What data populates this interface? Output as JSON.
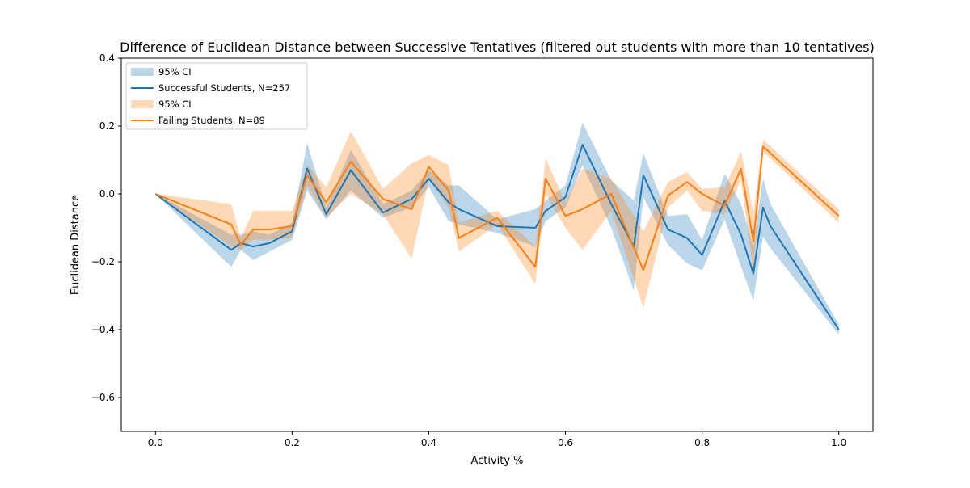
{
  "chart_data": {
    "type": "line",
    "title": "Difference of Euclidean Distance between Successive Tentatives (filtered out students with more than 10 tentatives)",
    "xlabel": "Activity %",
    "ylabel": "Euclidean Distance",
    "xlim": [
      -0.05,
      1.05
    ],
    "ylim": [
      -0.7,
      0.4
    ],
    "xticks": [
      0.0,
      0.2,
      0.4,
      0.6,
      0.8,
      1.0
    ],
    "xtick_labels": [
      "0.0",
      "0.2",
      "0.4",
      "0.6",
      "0.8",
      "1.0"
    ],
    "yticks": [
      -0.6,
      -0.4,
      -0.2,
      0.0,
      0.2,
      0.4
    ],
    "ytick_labels": [
      "−0.6",
      "−0.4",
      "−0.2",
      "0.0",
      "0.2",
      "0.4"
    ],
    "grid": false,
    "legend_position": "top-left",
    "legend": [
      "95% CI",
      "Successful Students, N=257",
      "95% CI",
      "Failing Students, N=89"
    ],
    "series": [
      {
        "name": "Successful Students, N=257",
        "color": "#1f77b4",
        "band_color": "#1f77b4",
        "x": [
          0.0,
          0.111,
          0.125,
          0.143,
          0.167,
          0.2,
          0.222,
          0.25,
          0.286,
          0.333,
          0.375,
          0.4,
          0.429,
          0.444,
          0.5,
          0.556,
          0.571,
          0.6,
          0.625,
          0.667,
          0.7,
          0.714,
          0.75,
          0.778,
          0.8,
          0.833,
          0.857,
          0.875,
          0.889,
          0.9,
          1.0
        ],
        "y": [
          0.0,
          -0.165,
          -0.145,
          -0.155,
          -0.145,
          -0.11,
          0.075,
          -0.06,
          0.07,
          -0.055,
          -0.015,
          0.045,
          -0.025,
          -0.045,
          -0.095,
          -0.1,
          -0.05,
          -0.01,
          0.145,
          -0.03,
          -0.155,
          0.055,
          -0.105,
          -0.13,
          -0.18,
          -0.02,
          -0.12,
          -0.235,
          -0.04,
          -0.095,
          -0.4
        ],
        "lower": [
          0.0,
          -0.215,
          -0.165,
          -0.195,
          -0.17,
          -0.135,
          0.01,
          -0.075,
          0.01,
          -0.07,
          -0.04,
          0.02,
          -0.08,
          -0.09,
          -0.115,
          -0.155,
          -0.08,
          -0.04,
          0.085,
          -0.1,
          -0.285,
          -0.01,
          -0.15,
          -0.205,
          -0.225,
          -0.075,
          -0.215,
          -0.315,
          -0.125,
          -0.16,
          -0.415
        ],
        "upper": [
          0.0,
          -0.12,
          -0.12,
          -0.11,
          -0.12,
          -0.085,
          0.15,
          -0.04,
          0.13,
          -0.03,
          0.01,
          0.07,
          0.025,
          0.025,
          -0.075,
          -0.045,
          -0.02,
          0.025,
          0.21,
          0.04,
          -0.02,
          0.12,
          -0.065,
          -0.06,
          -0.135,
          0.06,
          -0.03,
          -0.155,
          0.045,
          -0.03,
          -0.385
        ]
      },
      {
        "name": "Failing Students, N=89",
        "color": "#ff7f0e",
        "band_color": "#ff7f0e",
        "x": [
          0.0,
          0.111,
          0.125,
          0.143,
          0.167,
          0.2,
          0.222,
          0.25,
          0.286,
          0.333,
          0.375,
          0.4,
          0.429,
          0.444,
          0.5,
          0.556,
          0.571,
          0.6,
          0.625,
          0.667,
          0.714,
          0.75,
          0.778,
          0.8,
          0.833,
          0.857,
          0.875,
          0.889,
          1.0
        ],
        "y": [
          0.0,
          -0.09,
          -0.15,
          -0.105,
          -0.105,
          -0.095,
          0.055,
          -0.025,
          0.095,
          -0.015,
          -0.045,
          0.08,
          0.01,
          -0.13,
          -0.07,
          -0.215,
          0.045,
          -0.065,
          -0.045,
          0.0,
          -0.225,
          -0.005,
          0.035,
          0.0,
          -0.035,
          0.075,
          -0.14,
          0.14,
          -0.065
        ],
        "lower": [
          0.0,
          -0.155,
          -0.165,
          -0.135,
          -0.135,
          -0.13,
          0.025,
          -0.07,
          0.0,
          -0.06,
          -0.19,
          0.045,
          -0.04,
          -0.17,
          -0.09,
          -0.265,
          0.0,
          -0.1,
          -0.165,
          -0.05,
          -0.335,
          -0.04,
          0.01,
          -0.05,
          -0.06,
          0.04,
          -0.23,
          0.125,
          -0.085
        ],
        "upper": [
          0.0,
          -0.03,
          -0.13,
          -0.05,
          -0.05,
          -0.05,
          0.085,
          0.02,
          0.185,
          0.015,
          0.09,
          0.115,
          0.085,
          -0.085,
          -0.05,
          -0.155,
          0.105,
          -0.025,
          0.075,
          0.045,
          -0.11,
          0.035,
          0.065,
          0.015,
          0.02,
          0.125,
          -0.055,
          0.16,
          -0.045
        ]
      }
    ]
  }
}
